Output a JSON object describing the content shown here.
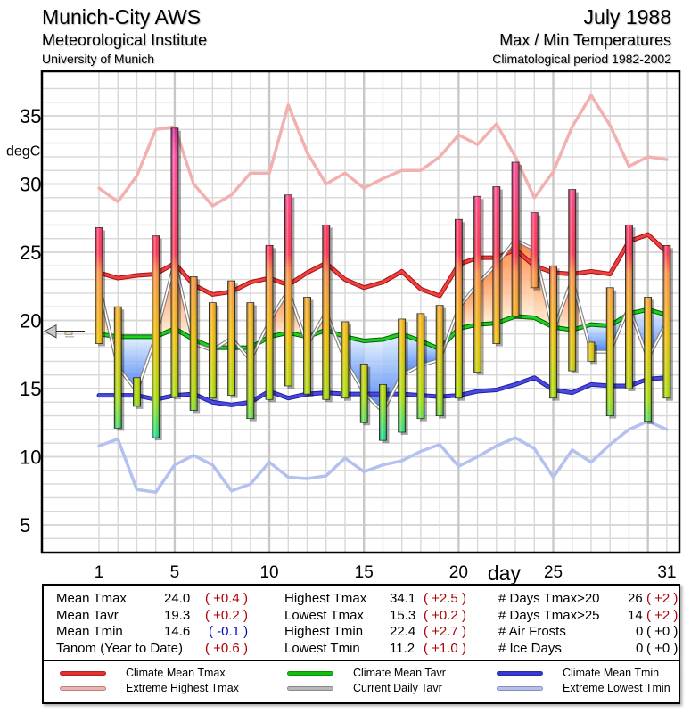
{
  "header": {
    "station": "Munich-City AWS",
    "institute": "Meteorological Institute",
    "university": "University of Munich",
    "period": "July 1988",
    "subject": "Max / Min Temperatures",
    "climate_period": "Climatological period 1982-2002"
  },
  "chart_data": {
    "type": "bar",
    "title": "Max / Min Temperatures July 1988",
    "xlabel": "day",
    "ylabel": "degC",
    "xlim": [
      -1.5,
      32
    ],
    "ylim": [
      3,
      38
    ],
    "xticks": [
      1,
      5,
      10,
      15,
      20,
      25,
      31
    ],
    "yticks": [
      5,
      10,
      15,
      20,
      25,
      30,
      35
    ],
    "grid": true,
    "days": [
      1,
      2,
      3,
      4,
      5,
      6,
      7,
      8,
      9,
      10,
      11,
      12,
      13,
      14,
      15,
      16,
      17,
      18,
      19,
      20,
      21,
      22,
      23,
      24,
      25,
      26,
      27,
      28,
      29,
      30,
      31
    ],
    "tmax": [
      26.8,
      21.0,
      15.8,
      26.2,
      34.1,
      23.2,
      21.3,
      22.9,
      21.3,
      25.5,
      29.2,
      21.7,
      27.0,
      19.9,
      16.8,
      15.3,
      20.1,
      20.5,
      21.1,
      27.4,
      29.1,
      29.8,
      31.6,
      27.9,
      24.0,
      29.6,
      18.4,
      22.4,
      27.0,
      21.7,
      25.5
    ],
    "tmin": [
      18.3,
      12.1,
      13.7,
      11.4,
      14.4,
      13.4,
      14.3,
      14.5,
      12.8,
      14.2,
      15.2,
      14.6,
      14.2,
      14.3,
      12.5,
      11.2,
      11.8,
      12.8,
      13.0,
      14.3,
      16.2,
      18.3,
      20.3,
      22.4,
      14.3,
      16.3,
      17.0,
      13.0,
      15.0,
      12.6,
      14.3
    ],
    "tavr": [
      22.6,
      16.6,
      14.8,
      18.8,
      24.3,
      18.3,
      17.8,
      18.7,
      17.1,
      19.9,
      22.2,
      18.2,
      20.6,
      17.1,
      14.7,
      13.3,
      16.0,
      16.7,
      17.1,
      20.9,
      22.7,
      24.1,
      25.9,
      25.2,
      19.2,
      23.0,
      17.7,
      17.7,
      21.0,
      17.2,
      19.9
    ],
    "series": [
      {
        "name": "Climate Mean Tmax",
        "color": "#e83030",
        "values": [
          23.5,
          23.1,
          23.3,
          23.4,
          24.2,
          22.6,
          21.9,
          22.1,
          22.8,
          23.1,
          22.6,
          23.5,
          24.2,
          23.0,
          22.4,
          22.8,
          23.6,
          22.3,
          21.8,
          24.1,
          24.6,
          24.6,
          25.2,
          24.0,
          23.5,
          23.4,
          23.6,
          23.4,
          25.8,
          26.3,
          25.0
        ]
      },
      {
        "name": "Extreme Highest Tmax",
        "color": "#f0a8a8",
        "values": [
          29.7,
          28.7,
          30.6,
          34.0,
          34.2,
          30.0,
          28.4,
          29.2,
          30.8,
          30.8,
          35.8,
          32.3,
          30.0,
          30.8,
          29.7,
          30.4,
          31.0,
          31.0,
          32.0,
          33.6,
          32.9,
          34.4,
          32.0,
          29.0,
          30.9,
          34.2,
          36.5,
          34.3,
          31.3,
          32.0,
          31.8
        ]
      },
      {
        "name": "Climate Mean Tavr",
        "color": "#10b010",
        "values": [
          19.0,
          18.8,
          18.8,
          18.8,
          19.4,
          18.6,
          18.0,
          18.0,
          18.0,
          18.8,
          19.1,
          18.8,
          19.3,
          18.8,
          18.5,
          18.6,
          19.0,
          18.5,
          17.9,
          19.4,
          19.7,
          19.8,
          20.3,
          20.2,
          19.5,
          19.3,
          19.7,
          19.6,
          20.5,
          20.8,
          20.4
        ]
      },
      {
        "name": "Current Daily Tavr",
        "color": "#a0a0a0",
        "values": [
          22.6,
          16.6,
          14.8,
          18.8,
          24.3,
          18.3,
          17.8,
          18.7,
          17.1,
          19.9,
          22.2,
          18.2,
          20.6,
          17.1,
          14.7,
          13.3,
          16.0,
          16.7,
          17.1,
          20.9,
          22.7,
          24.1,
          25.9,
          25.2,
          19.2,
          23.0,
          17.7,
          17.7,
          21.0,
          17.2,
          19.9
        ]
      },
      {
        "name": "Climate Mean Tmin",
        "color": "#3838d8",
        "values": [
          14.5,
          14.5,
          14.5,
          14.2,
          14.5,
          14.6,
          14.0,
          13.8,
          14.0,
          14.8,
          14.3,
          14.6,
          14.7,
          14.6,
          14.6,
          14.6,
          14.6,
          14.5,
          14.4,
          14.5,
          14.8,
          14.9,
          15.3,
          15.8,
          14.9,
          14.7,
          15.3,
          15.2,
          15.2,
          15.7,
          15.8
        ]
      },
      {
        "name": "Extreme Lowest Tmin",
        "color": "#a8b4ec",
        "values": [
          10.8,
          11.3,
          7.6,
          7.4,
          9.4,
          10.1,
          9.4,
          7.5,
          8.0,
          9.6,
          8.5,
          8.4,
          8.6,
          9.9,
          8.9,
          9.4,
          9.7,
          10.4,
          10.9,
          9.3,
          10.0,
          10.8,
          11.4,
          10.6,
          8.5,
          10.5,
          9.6,
          10.9,
          12.0,
          12.6,
          12.0
        ]
      }
    ],
    "marker": {
      "value": 19.2,
      "label": "current-value arrow"
    }
  },
  "stats": {
    "col1": [
      {
        "label": "Mean Tmax",
        "value": "24.0",
        "anom": "( +0.4 )",
        "sign": "pos"
      },
      {
        "label": "Mean Tavr",
        "value": "19.3",
        "anom": "( +0.2 )",
        "sign": "pos"
      },
      {
        "label": "Mean Tmin",
        "value": "14.6",
        "anom": "( -0.1 )",
        "sign": "neg"
      },
      {
        "label": "Tanom (Year to Date)",
        "value": "",
        "anom": "( +0.6 )",
        "sign": "pos"
      }
    ],
    "col2": [
      {
        "label": "Highest Tmax",
        "value": "34.1",
        "anom": "( +2.5 )",
        "sign": "pos"
      },
      {
        "label": "Lowest Tmax",
        "value": "15.3",
        "anom": "( +0.2 )",
        "sign": "pos"
      },
      {
        "label": "Highest Tmin",
        "value": "22.4",
        "anom": "( +2.7 )",
        "sign": "pos"
      },
      {
        "label": "Lowest Tmin",
        "value": "11.2",
        "anom": "( +1.0 )",
        "sign": "pos"
      }
    ],
    "col3": [
      {
        "label": "# Days Tmax>20",
        "value": "26",
        "anom": "( +2 )",
        "sign": "pos"
      },
      {
        "label": "# Days Tmax>25",
        "value": "14",
        "anom": "( +2 )",
        "sign": "pos"
      },
      {
        "label": "# Air Frosts",
        "value": "0",
        "anom": "( +0 )",
        "sign": "neu"
      },
      {
        "label": "# Ice Days",
        "value": "0",
        "anom": "( +0 )",
        "sign": "neu"
      }
    ]
  },
  "legend": [
    {
      "label": "Climate Mean Tmax",
      "color": "#e83030"
    },
    {
      "label": "Extreme Highest Tmax",
      "color": "#f2b0b0"
    },
    {
      "label": "Climate Mean Tavr",
      "color": "#10c010"
    },
    {
      "label": "Current Daily Tavr",
      "color": "#b8b8b8"
    },
    {
      "label": "Climate Mean Tmin",
      "color": "#3838d8"
    },
    {
      "label": "Extreme Lowest Tmin",
      "color": "#b4c0f0"
    }
  ]
}
